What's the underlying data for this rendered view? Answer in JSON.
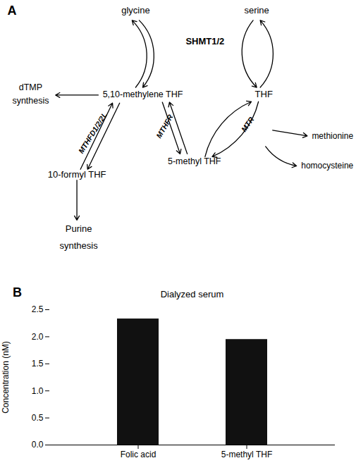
{
  "chart_data": {
    "type": "bar",
    "title": "Dialyzed serum",
    "ylabel": "Concentration (nM)",
    "categories": [
      "Folic acid",
      "5-methyl THF"
    ],
    "values": [
      2.33,
      1.95
    ],
    "color": "#111111",
    "ylim": [
      0,
      2.5
    ],
    "yticks": [
      {
        "value": 0,
        "label": "0.0"
      },
      0.5,
      {
        "value": 1,
        "label": "1.0"
      },
      1.5,
      {
        "value": 2,
        "label": "2.0"
      },
      2.5
    ],
    "annotations": [
      "A",
      "glycine",
      "serine",
      "SHMT1/2",
      "5,10-methylene THF",
      "THF",
      "dTMP",
      "synthesis",
      "5-methyl THF",
      "methionine",
      "homocysteine",
      "10-formyl THF",
      "Purine",
      "synthesis",
      "MTHFD1/2/2L",
      "MTHFR",
      "MTR",
      "B"
    ]
  }
}
